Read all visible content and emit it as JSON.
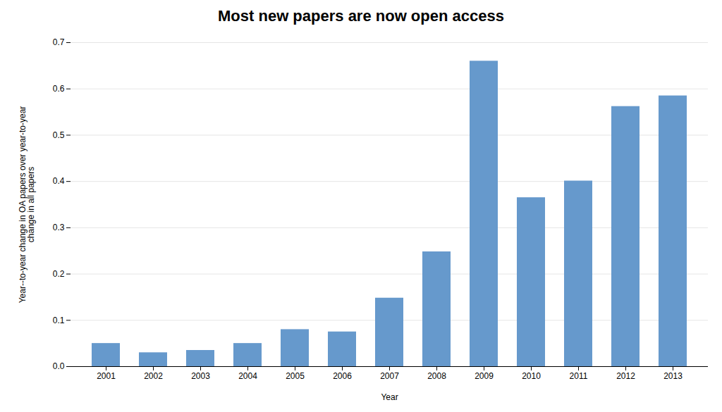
{
  "chart_data": {
    "type": "bar",
    "title": "Most new papers are now open access",
    "xlabel": "Year",
    "ylabel": "Year--to-year change in OA papers over year-to-year\nchange in all papers",
    "categories": [
      "2001",
      "2002",
      "2003",
      "2004",
      "2005",
      "2006",
      "2007",
      "2008",
      "2009",
      "2010",
      "2011",
      "2012",
      "2013"
    ],
    "values": [
      0.05,
      0.03,
      0.035,
      0.05,
      0.08,
      0.075,
      0.148,
      0.248,
      0.66,
      0.365,
      0.401,
      0.562,
      0.585
    ],
    "color": "#6699CC",
    "ylim": [
      0,
      0.7
    ],
    "yticks": [
      {
        "value": 0,
        "label": "0.0"
      },
      0.1,
      0.2,
      0.3,
      0.4,
      0.5,
      0.6,
      0.7
    ],
    "grid": true
  }
}
